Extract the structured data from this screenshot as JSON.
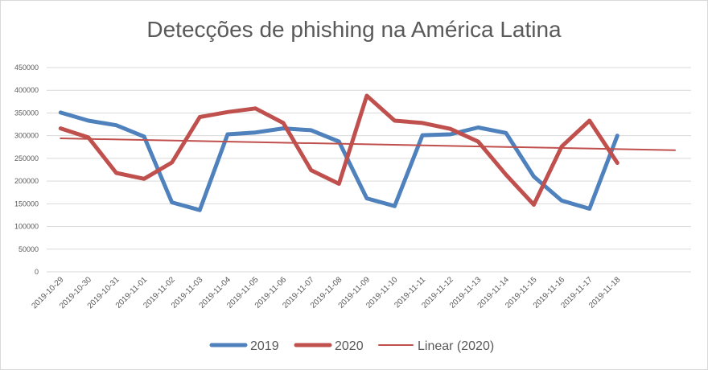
{
  "chart_data": {
    "type": "line",
    "title": "Detecções de phishing na América Latina",
    "xlabel": "",
    "ylabel": "",
    "categories": [
      "2019-10-29",
      "2019-10-30",
      "2019-10-31",
      "2019-11-01",
      "2019-11-02",
      "2019-11-03",
      "2019-11-04",
      "2019-11-05",
      "2019-11-06",
      "2019-11-07",
      "2019-11-08",
      "2019-11-09",
      "2019-11-10",
      "2019-11-11",
      "2019-11-12",
      "2019-11-13",
      "2019-11-14",
      "2019-11-15",
      "2019-11-16",
      "2019-11-17",
      "2019-11-18"
    ],
    "ylim": [
      0,
      450000
    ],
    "yticks": [
      "0",
      "50000",
      "100000",
      "150000",
      "200000",
      "250000",
      "300000",
      "350000",
      "400000",
      "450000"
    ],
    "grid": true,
    "legend_position": "bottom",
    "series": [
      {
        "name": "2019",
        "color": "#4f81bd",
        "style": "thick",
        "values": [
          351000,
          333000,
          323000,
          298000,
          153000,
          136000,
          303000,
          307000,
          316000,
          312000,
          287000,
          162000,
          145000,
          301000,
          303000,
          318000,
          306000,
          210000,
          157000,
          139000,
          300000
        ]
      },
      {
        "name": "2020",
        "color": "#c0504d",
        "style": "thick",
        "values": [
          316000,
          296000,
          218000,
          205000,
          241000,
          341000,
          352000,
          360000,
          328000,
          224000,
          194000,
          388000,
          333000,
          328000,
          315000,
          287000,
          214000,
          148000,
          276000,
          333000,
          240000
        ]
      },
      {
        "name": "Linear (2020)",
        "color": "#c0504d",
        "style": "trendline",
        "start": 294000,
        "end": 268000
      }
    ]
  }
}
